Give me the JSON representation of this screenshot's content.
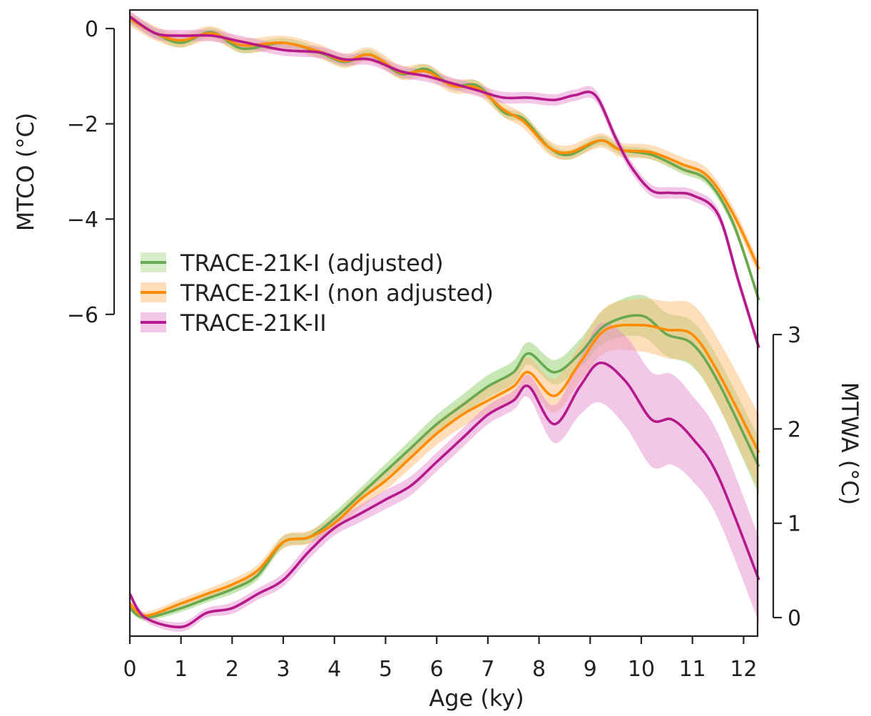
{
  "chart_data": {
    "type": "line",
    "xlabel": "Age (ky)",
    "xlim": [
      0,
      12.3
    ],
    "xticks": [
      0,
      1,
      2,
      3,
      4,
      5,
      6,
      7,
      8,
      9,
      10,
      11,
      12
    ],
    "left_axis": {
      "label": "MTCO (°C)",
      "ticks": [
        0,
        -2,
        -4,
        -6
      ],
      "tick_labels": [
        "0",
        "−2",
        "−4",
        "−6"
      ],
      "range": [
        -6,
        0
      ]
    },
    "right_axis": {
      "label": "MTWA (°C)",
      "ticks": [
        0,
        1,
        2,
        3
      ],
      "tick_labels": [
        "0",
        "1",
        "2",
        "3"
      ],
      "range": [
        0,
        3
      ]
    },
    "legend": {
      "placement": "center-left",
      "entries": [
        "TRACE-21K-I (adjusted)",
        "TRACE-21K-I (non adjusted)",
        "TRACE-21K-II"
      ]
    },
    "series": [
      {
        "name": "TRACE-21K-I (adjusted)",
        "color": "#6aa84f",
        "band_color": "#8fcf6a",
        "mtco_x": [
          0,
          0.5,
          1,
          1.6,
          2.2,
          3,
          3.7,
          4.2,
          4.7,
          5.3,
          5.8,
          6.3,
          6.8,
          7.3,
          7.7,
          8.2,
          8.6,
          9.2,
          9.6,
          10.2,
          10.8,
          11.3,
          11.8,
          12.3
        ],
        "mtco_y": [
          0.2,
          -0.1,
          -0.3,
          -0.08,
          -0.42,
          -0.3,
          -0.5,
          -0.7,
          -0.55,
          -0.95,
          -0.85,
          -1.2,
          -1.2,
          -1.75,
          -1.9,
          -2.5,
          -2.65,
          -2.35,
          -2.55,
          -2.65,
          -2.95,
          -3.2,
          -4.1,
          -5.7
        ],
        "mtco_err": 0.1,
        "mtwa_x": [
          0,
          0.3,
          1,
          1.5,
          2,
          2.5,
          3,
          3.5,
          4,
          4.5,
          5,
          5.5,
          6,
          6.5,
          7,
          7.5,
          7.8,
          8.3,
          8.8,
          9.3,
          10,
          10.5,
          11,
          11.5,
          12.3
        ],
        "mtwa_y": [
          0.1,
          0,
          0.1,
          0.2,
          0.3,
          0.45,
          0.8,
          0.85,
          1.05,
          1.3,
          1.55,
          1.8,
          2.05,
          2.25,
          2.45,
          2.6,
          2.8,
          2.6,
          2.8,
          3.1,
          3.2,
          3.0,
          2.9,
          2.5,
          1.6
        ],
        "mtwa_err": [
          0.03,
          0.03,
          0.04,
          0.04,
          0.05,
          0.05,
          0.06,
          0.06,
          0.07,
          0.07,
          0.08,
          0.09,
          0.1,
          0.11,
          0.12,
          0.12,
          0.12,
          0.13,
          0.15,
          0.18,
          0.22,
          0.23,
          0.24,
          0.25,
          0.3
        ]
      },
      {
        "name": "TRACE-21K-I (non adjusted)",
        "color": "#ff8c00",
        "band_color": "#ffbe7a",
        "mtco_x": [
          0,
          0.5,
          1,
          1.6,
          2.2,
          3,
          3.7,
          4.2,
          4.7,
          5.3,
          5.8,
          6.3,
          6.8,
          7.3,
          7.7,
          8.2,
          8.6,
          9.2,
          9.6,
          10.2,
          10.8,
          11.3,
          11.8,
          12.3
        ],
        "mtco_y": [
          0.2,
          -0.1,
          -0.25,
          -0.1,
          -0.35,
          -0.3,
          -0.48,
          -0.68,
          -0.55,
          -0.92,
          -0.9,
          -1.2,
          -1.25,
          -1.7,
          -1.95,
          -2.5,
          -2.6,
          -2.35,
          -2.55,
          -2.6,
          -2.85,
          -3.1,
          -3.9,
          -5.05
        ],
        "mtco_err": 0.15,
        "mtwa_x": [
          0,
          0.3,
          1,
          1.5,
          2,
          2.5,
          3,
          3.5,
          4,
          4.5,
          5,
          5.5,
          6,
          6.5,
          7,
          7.5,
          7.8,
          8.3,
          8.8,
          9.3,
          10,
          10.5,
          11,
          11.5,
          12.3
        ],
        "mtwa_y": [
          0.15,
          0.02,
          0.15,
          0.25,
          0.35,
          0.5,
          0.8,
          0.85,
          1.0,
          1.25,
          1.45,
          1.7,
          1.95,
          2.15,
          2.3,
          2.45,
          2.6,
          2.35,
          2.7,
          3.05,
          3.1,
          3.05,
          3.0,
          2.6,
          1.75
        ],
        "mtwa_err": [
          0.04,
          0.04,
          0.05,
          0.05,
          0.06,
          0.06,
          0.07,
          0.07,
          0.08,
          0.09,
          0.1,
          0.11,
          0.12,
          0.13,
          0.14,
          0.15,
          0.16,
          0.18,
          0.2,
          0.24,
          0.28,
          0.3,
          0.32,
          0.35,
          0.4
        ]
      },
      {
        "name": "TRACE-21K-II",
        "color": "#b5198c",
        "band_color": "#e58fd0",
        "mtco_x": [
          0,
          0.5,
          1,
          1.6,
          2.2,
          3,
          3.7,
          4.2,
          4.7,
          5.3,
          5.8,
          6.3,
          6.8,
          7.3,
          7.8,
          8.3,
          8.7,
          9.1,
          9.5,
          9.8,
          10.2,
          10.6,
          11.0,
          11.5,
          11.9,
          12.3
        ],
        "mtco_y": [
          0.25,
          -0.1,
          -0.15,
          -0.15,
          -0.28,
          -0.45,
          -0.5,
          -0.65,
          -0.65,
          -0.9,
          -1.0,
          -1.15,
          -1.3,
          -1.45,
          -1.45,
          -1.5,
          -1.4,
          -1.4,
          -2.3,
          -2.9,
          -3.4,
          -3.45,
          -3.5,
          -3.9,
          -5.3,
          -6.7
        ],
        "mtco_err": 0.12,
        "mtwa_x": [
          0,
          0.3,
          1,
          1.5,
          2,
          2.5,
          3,
          3.5,
          4,
          4.5,
          5,
          5.5,
          6,
          6.5,
          7,
          7.5,
          7.8,
          8.3,
          8.8,
          9.2,
          9.7,
          10.2,
          10.6,
          11.0,
          11.5,
          12.3
        ],
        "mtwa_y": [
          0.25,
          0.0,
          -0.1,
          0.05,
          0.1,
          0.25,
          0.4,
          0.7,
          0.95,
          1.1,
          1.25,
          1.4,
          1.65,
          1.9,
          2.15,
          2.3,
          2.45,
          2.05,
          2.45,
          2.7,
          2.5,
          2.1,
          2.1,
          1.9,
          1.5,
          0.4
        ],
        "mtwa_err": [
          0.04,
          0.04,
          0.05,
          0.05,
          0.06,
          0.06,
          0.07,
          0.08,
          0.08,
          0.09,
          0.1,
          0.1,
          0.1,
          0.1,
          0.1,
          0.1,
          0.12,
          0.2,
          0.3,
          0.42,
          0.48,
          0.5,
          0.48,
          0.45,
          0.45,
          0.45
        ]
      }
    ]
  }
}
